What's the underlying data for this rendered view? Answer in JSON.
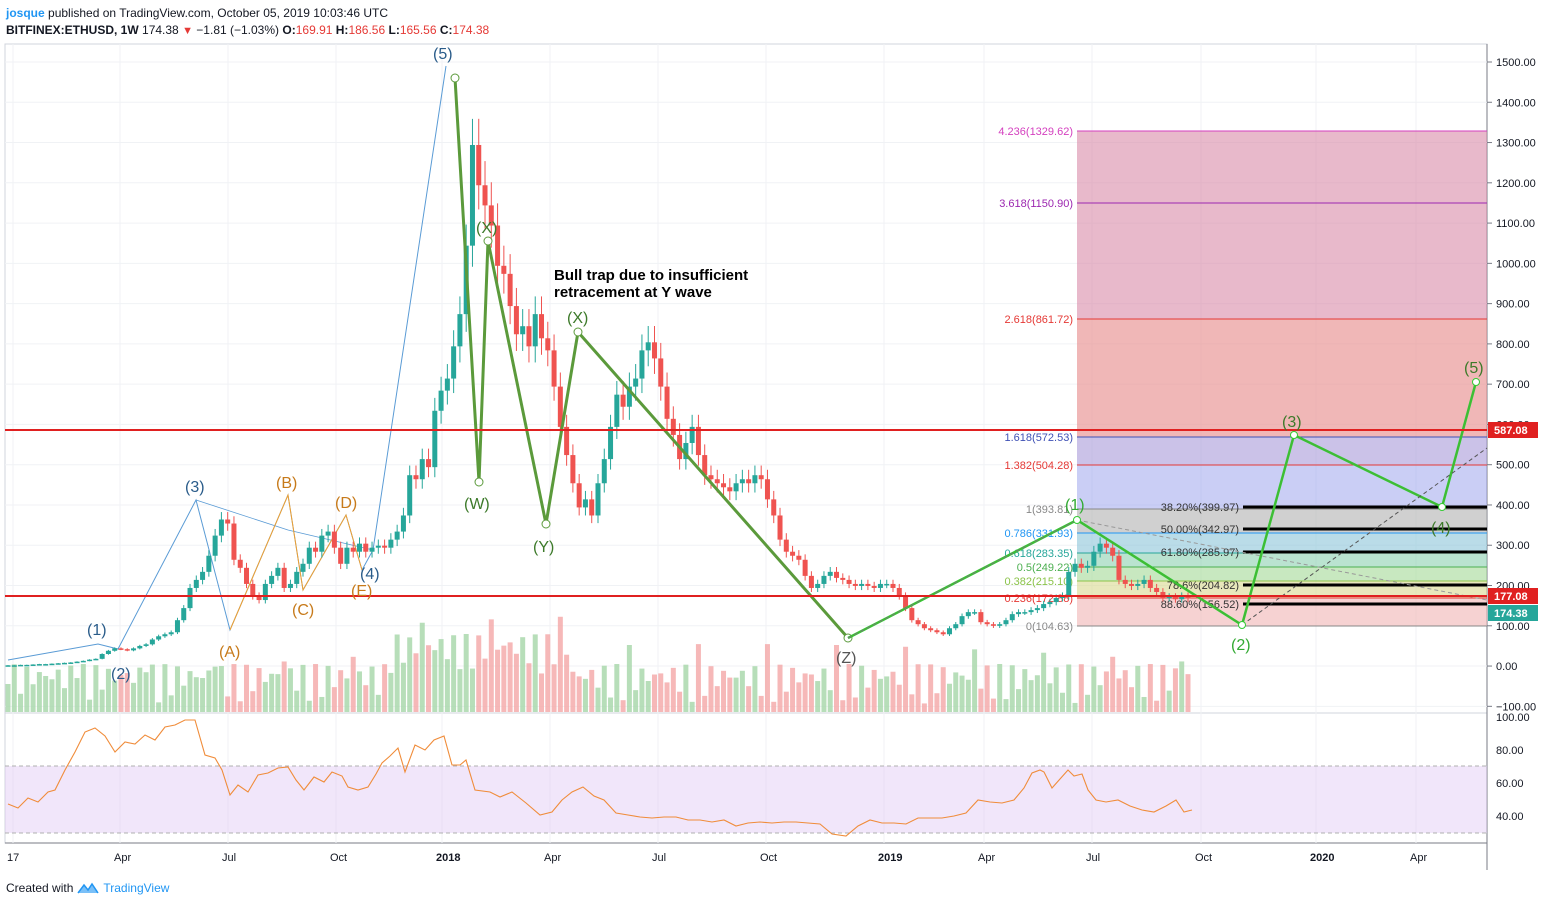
{
  "header": {
    "author": "josque",
    "published": "published on TradingView.com, October 05, 2019 10:03:46 UTC",
    "symbol": "BITFINEX:ETHUSD, 1W",
    "last": "174.38",
    "change": "−1.81 (−1.03%)",
    "o_label": "O:",
    "o": "169.91",
    "h_label": "H:",
    "h": "186.56",
    "l_label": "L:",
    "l": "165.56",
    "c_label": "C:",
    "c": "174.38"
  },
  "footer": {
    "created_with": "Created with",
    "brand": "TradingView"
  },
  "annotation": {
    "line1": "Bull trap due to insufficient",
    "line2": "retracement at Y wave"
  },
  "price_axis": {
    "ticks": [
      "1500.00",
      "1400.00",
      "1300.00",
      "1200.00",
      "1100.00",
      "1000.00",
      "900.00",
      "800.00",
      "700.00",
      "600.00",
      "500.00",
      "400.00",
      "300.00",
      "200.00",
      "100.00",
      "0.00",
      "−100.00"
    ],
    "badge_red": "587.08",
    "badge_red2": "177.08",
    "badge_green": "174.38"
  },
  "rsi_axis": {
    "ticks": [
      "100.00",
      "80.00",
      "60.00",
      "40.00"
    ]
  },
  "time_axis": [
    "17",
    "Apr",
    "Jul",
    "Oct",
    "2018",
    "Apr",
    "Jul",
    "Oct",
    "2019",
    "Apr",
    "Jul",
    "Oct",
    "2020",
    "Apr"
  ],
  "fib_extension": [
    "4.236(1329.62)",
    "3.618(1150.90)",
    "2.618(861.72)",
    "1.618(572.53)",
    "1.382(504.28)",
    "1(393.81)",
    "0.786(331.93)",
    "0.618(283.35)",
    "0.5(249.22)",
    "0.382(215.10)",
    "0.236(172.88)",
    "0(104.63)"
  ],
  "fib_retracement": [
    "38.20%(399.97)",
    "50.00%(342.97)",
    "61.80%(285.97)",
    "78.6%(204.82)",
    "88.60%(156.52)"
  ],
  "wave_labels": {
    "w1": "(1)",
    "w2": "(2)",
    "w3": "(3)",
    "w4": "(4)",
    "w5": "(5)",
    "A": "(A)",
    "B": "(B)",
    "C": "(C)",
    "D": "(D)",
    "E": "(E)",
    "W": "(W)",
    "X1": "(X)",
    "Y": "(Y)",
    "X2": "(X)",
    "Z": "(Z)",
    "g1": "(1)",
    "g2": "(2)",
    "g3": "(3)",
    "g4": "(4)",
    "g5": "(5)"
  },
  "colors": {
    "up": "#26a69a",
    "down": "#ef5350",
    "bull": "#4caf50",
    "bear": "#e53935",
    "wave_blue": "#2a5c8a",
    "wave_orange": "#c77a1a",
    "wave_green": "#3d7a2a",
    "bright_green": "#33cc33"
  }
}
